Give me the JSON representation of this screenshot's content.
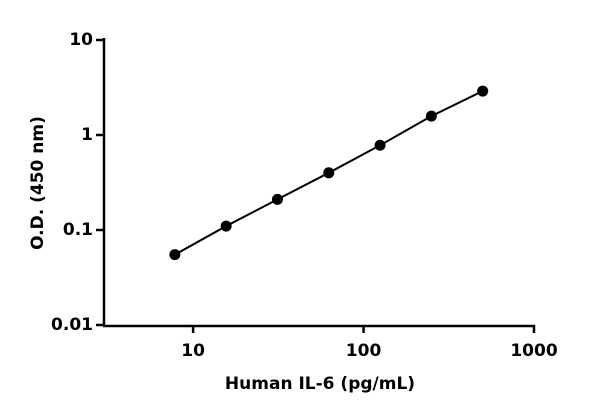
{
  "chart_data": {
    "type": "line",
    "x_label": "Human IL-6 (pg/mL)",
    "y_label": "O.D. (450 nm)",
    "x": [
      7.8125,
      15.625,
      31.25,
      62.5,
      125,
      250,
      500
    ],
    "values": [
      0.055,
      0.11,
      0.21,
      0.4,
      0.78,
      1.58,
      2.9
    ],
    "color": "#000000",
    "markers": true,
    "xscale": "log",
    "yscale": "log",
    "xlim": [
      3,
      1000
    ],
    "xticks": [
      10,
      100,
      1000
    ],
    "ylim": [
      0.01,
      10
    ],
    "yticks": [
      0.01,
      0.1,
      1,
      10
    ],
    "grid": false
  }
}
